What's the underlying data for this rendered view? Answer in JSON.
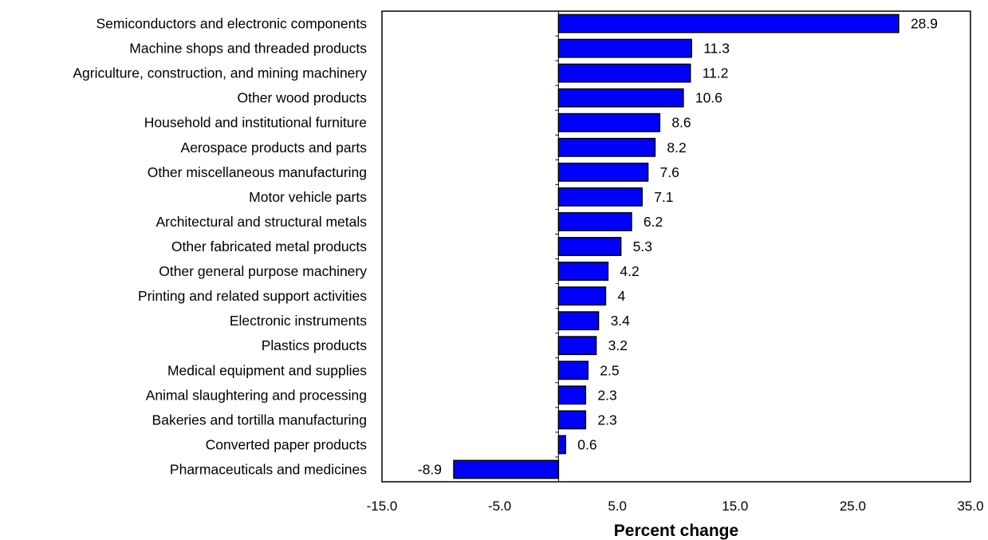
{
  "chart_data": {
    "type": "bar",
    "orientation": "horizontal",
    "title": "",
    "xlabel": "Percent change",
    "ylabel": "",
    "xlim": [
      -15.0,
      35.0
    ],
    "x_ticks": [
      -15.0,
      -5.0,
      5.0,
      15.0,
      25.0,
      35.0
    ],
    "x_tick_labels": [
      "-15.0",
      "-5.0",
      "5.0",
      "15.0",
      "25.0",
      "35.0"
    ],
    "grid": false,
    "legend": "none",
    "bar_color": "#0000FF",
    "bar_edge_color": "#000000",
    "categories": [
      "Semiconductors and electronic components",
      "Machine shops and threaded products",
      "Agriculture, construction, and mining machinery",
      "Other wood products",
      "Household and institutional furniture",
      "Aerospace products and parts",
      "Other miscellaneous manufacturing",
      "Motor vehicle parts",
      "Architectural and structural metals",
      "Other fabricated metal products",
      "Other general purpose machinery",
      "Printing and related support activities",
      "Electronic instruments",
      "Plastics products",
      "Medical equipment and supplies",
      "Animal slaughtering and processing",
      "Bakeries and tortilla manufacturing",
      "Converted paper products",
      "Pharmaceuticals and medicines"
    ],
    "values": [
      28.9,
      11.3,
      11.2,
      10.6,
      8.6,
      8.2,
      7.6,
      7.1,
      6.2,
      5.3,
      4.2,
      4,
      3.4,
      3.2,
      2.5,
      2.3,
      2.3,
      0.6,
      -8.9
    ],
    "value_labels": [
      "28.9",
      "11.3",
      "11.2",
      "10.6",
      "8.6",
      "8.2",
      "7.6",
      "7.1",
      "6.2",
      "5.3",
      "4.2",
      "4",
      "3.4",
      "3.2",
      "2.5",
      "2.3",
      "2.3",
      "0.6",
      "-8.9"
    ]
  }
}
